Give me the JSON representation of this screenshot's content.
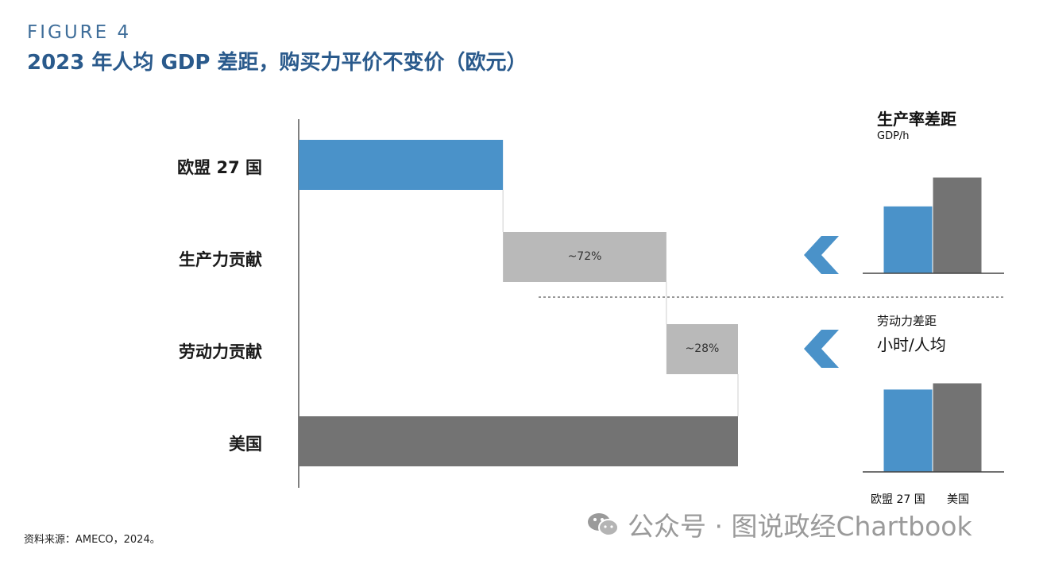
{
  "figure_label": "FIGURE 4",
  "title": "2023 年人均 GDP 差距，购买力平价不变价（欧元）",
  "source": "资料来源：AMECO，2024。",
  "watermark": "公众号 · 图说政经Chartbook",
  "colors": {
    "eu": "#4a92c9",
    "contribution": "#b9b9b9",
    "us": "#737373",
    "title": "#2a5a8c",
    "arrow": "#4a92c9"
  },
  "chart_data": [
    {
      "type": "bar",
      "subtype": "waterfall",
      "categories": [
        "欧盟 27 国",
        "生产力贡献",
        "劳动力贡献",
        "美国"
      ],
      "segments": [
        {
          "category": "欧盟 27 国",
          "start": 0,
          "end": 46.5,
          "label": ""
        },
        {
          "category": "生产力贡献",
          "start": 46.5,
          "end": 83.7,
          "label": "~72%"
        },
        {
          "category": "劳动力贡献",
          "start": 83.7,
          "end": 100,
          "label": "~28%"
        },
        {
          "category": "美国",
          "start": 0,
          "end": 100,
          "label": ""
        }
      ],
      "xlim": [
        0,
        110
      ],
      "title": "",
      "xlabel": "",
      "ylabel": ""
    },
    {
      "type": "bar",
      "title": "生产率差距",
      "unit": "GDP/h",
      "categories": [
        "欧盟 27 国",
        "美国"
      ],
      "values": [
        70,
        100
      ],
      "ylim": [
        0,
        105
      ]
    },
    {
      "type": "bar",
      "title": "劳动力差距",
      "unit": "小时/人均",
      "categories": [
        "欧盟 27 国",
        "美国"
      ],
      "values": [
        93,
        100
      ],
      "ylim": [
        0,
        105
      ]
    }
  ]
}
